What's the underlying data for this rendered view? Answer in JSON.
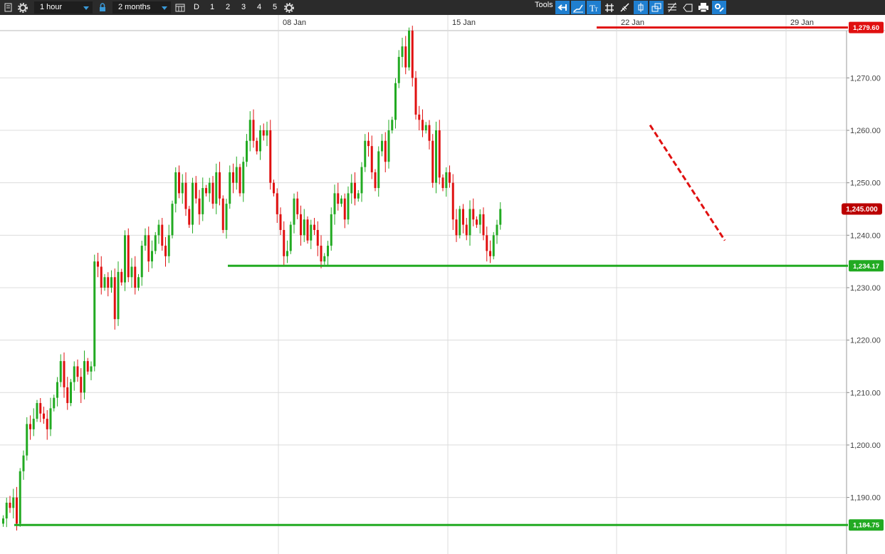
{
  "toolbar": {
    "interval": "1 hour",
    "range": "2 months",
    "day_label": "D",
    "presets": [
      "1",
      "2",
      "3",
      "4",
      "5"
    ],
    "tools_label": "Tools",
    "icons": [
      "chart-menu-icon",
      "settings-icon",
      "lock-icon",
      "calendar-icon",
      "settings-icon",
      "arrow-left-icon",
      "trend-line-icon",
      "text-icon",
      "grid-icon",
      "pen-icon",
      "candle-icon",
      "layers-icon",
      "fibonacci-icon",
      "label-icon",
      "print-icon",
      "tools-settings-icon"
    ],
    "accent": "#1f7fd0"
  },
  "chart_data": {
    "type": "candlestick",
    "x_ticks": [
      "08 Jan",
      "15 Jan",
      "22 Jan",
      "29 Jan"
    ],
    "y_ticks": [
      "1,190.00",
      "1,200.00",
      "1,210.00",
      "1,220.00",
      "1,230.00",
      "1,240.00",
      "1,250.00",
      "1,260.00",
      "1,270.00"
    ],
    "ylim": [
      1183,
      1282
    ],
    "grid": true,
    "up_color": "#22aa22",
    "down_color": "#e01010",
    "closes": [
      1186,
      1189,
      1188,
      1190,
      1185,
      1195,
      1198,
      1204,
      1203,
      1205,
      1208,
      1206,
      1205,
      1203,
      1207,
      1209,
      1212,
      1216,
      1211,
      1208,
      1212,
      1215,
      1213,
      1210,
      1216,
      1214,
      1215,
      1235,
      1234,
      1230,
      1232,
      1230,
      1232,
      1224,
      1233,
      1231,
      1240,
      1232,
      1234,
      1230,
      1232,
      1238,
      1240,
      1235,
      1237,
      1240,
      1242,
      1238,
      1236,
      1240,
      1246,
      1252,
      1248,
      1250,
      1245,
      1242,
      1250,
      1247,
      1244,
      1249,
      1248,
      1250,
      1246,
      1252,
      1247,
      1241,
      1246,
      1252,
      1250,
      1253,
      1248,
      1254,
      1258,
      1262,
      1258,
      1256,
      1260,
      1259,
      1260,
      1250,
      1248,
      1244,
      1241,
      1236,
      1237,
      1242,
      1247,
      1244,
      1240,
      1243,
      1239,
      1242,
      1241,
      1238,
      1235,
      1236,
      1238,
      1244,
      1248,
      1246,
      1247,
      1243,
      1248,
      1250,
      1247,
      1248,
      1253,
      1258,
      1257,
      1252,
      1249,
      1256,
      1258,
      1254,
      1260,
      1262,
      1269,
      1274,
      1276,
      1272,
      1279,
      1270,
      1263,
      1262,
      1260,
      1261,
      1258,
      1250,
      1260,
      1251,
      1249,
      1252,
      1250,
      1243,
      1240,
      1245,
      1242,
      1240,
      1245,
      1243,
      1242,
      1244,
      1240,
      1237,
      1236,
      1240,
      1242,
      1245
    ],
    "levels": [
      {
        "value": "1,279.60",
        "color": "#e01010",
        "role": "resistance"
      },
      {
        "value": "1,234.17",
        "color": "#22aa22",
        "role": "support"
      },
      {
        "value": "1,184.75",
        "color": "#22aa22",
        "role": "support"
      }
    ],
    "current_price": {
      "value": "1,245.000",
      "color": "#bb0000"
    },
    "trendline": {
      "from": 1261,
      "to": 1239,
      "style": "dashed",
      "color": "#e01010"
    }
  }
}
